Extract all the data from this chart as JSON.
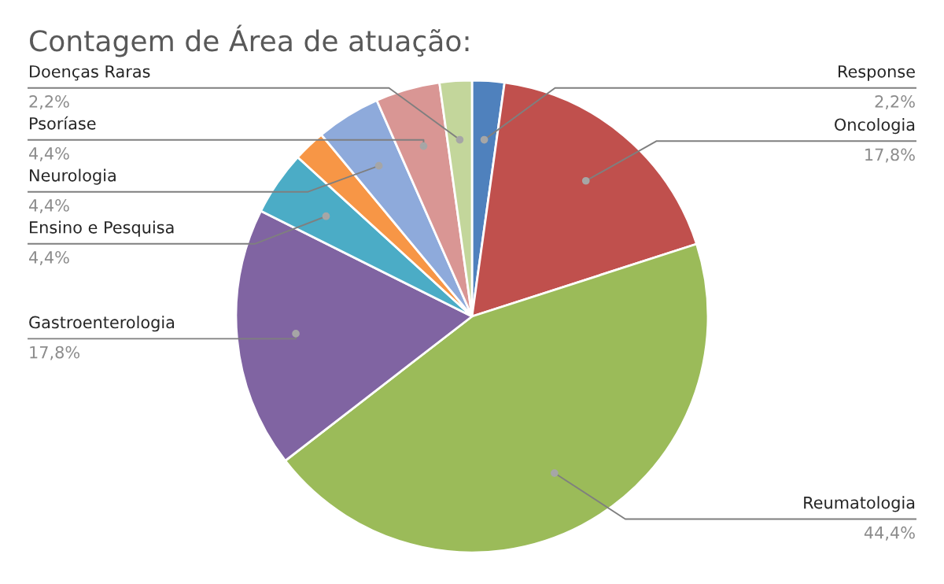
{
  "chart_data": {
    "type": "pie",
    "title": "Contagem de Área de atuação:",
    "categories": [
      "Response",
      "Oncologia",
      "Reumatologia",
      "Gastroenterologia",
      "Ensino e Pesquisa",
      null,
      "Neurologia",
      "Psoríase",
      "Doenças Raras"
    ],
    "values": [
      2.2,
      17.8,
      44.4,
      17.8,
      4.4,
      2.2,
      4.4,
      4.4,
      2.2
    ],
    "value_labels": [
      "2,2%",
      "17,8%",
      "44,4%",
      "17,8%",
      "4,4%",
      null,
      "4,4%",
      "4,4%",
      "2,2%"
    ],
    "colors": [
      "#4f81bd",
      "#c0504d",
      "#9bbb59",
      "#8064a2",
      "#4bacc6",
      "#f79646",
      "#8eaadb",
      "#d99694",
      "#c3d69b"
    ],
    "legend": false
  }
}
